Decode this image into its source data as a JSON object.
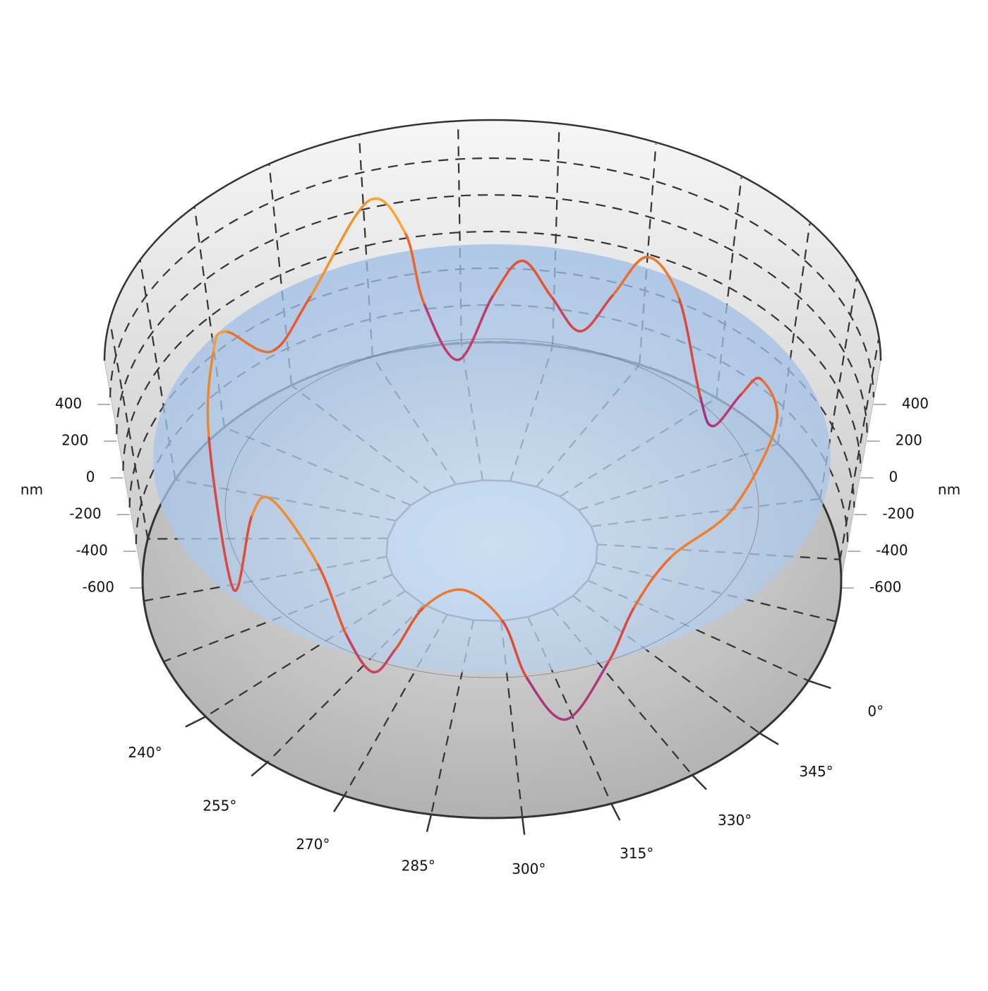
{
  "chart_data": {
    "type": "line",
    "y_label": "nm",
    "x": [
      25,
      44,
      54,
      64,
      68,
      74,
      82,
      90,
      97,
      103,
      109,
      115,
      122,
      129,
      133,
      141,
      155,
      166,
      185,
      195,
      205,
      229,
      237,
      244,
      257,
      264,
      270,
      275,
      281,
      289,
      297,
      302,
      310,
      319,
      325,
      334,
      353
    ],
    "values": [
      182,
      109,
      -120,
      -415,
      -309,
      131,
      262,
      0,
      -225,
      -73,
      98,
      -91,
      -411,
      -98,
      284,
      494,
      124,
      -29,
      338,
      385,
      109,
      -295,
      200,
      371,
      185,
      -113,
      -258,
      -109,
      135,
      247,
      91,
      -211,
      -447,
      -204,
      40,
      215,
      236
    ],
    "colorscale": [
      "#5a2d8c",
      "#b63779",
      "#e8502a",
      "#f3902a",
      "#fcd63c"
    ],
    "ylim": [
      -600,
      600
    ],
    "yticks": [
      -600,
      -400,
      -200,
      0,
      200,
      400
    ],
    "xticks": [
      {
        "value": 0,
        "label": "0°"
      },
      {
        "value": 15,
        "label": null
      },
      {
        "value": 30,
        "label": null
      },
      {
        "value": 45,
        "label": null
      },
      {
        "value": 60,
        "label": null
      },
      {
        "value": 75,
        "label": null
      },
      {
        "value": 90,
        "label": null
      },
      {
        "value": 105,
        "label": null
      },
      {
        "value": 120,
        "label": null
      },
      {
        "value": 135,
        "label": null
      },
      {
        "value": 150,
        "label": null
      },
      {
        "value": 165,
        "label": null
      },
      {
        "value": 180,
        "label": null
      },
      {
        "value": 195,
        "label": null
      },
      {
        "value": 210,
        "label": null
      },
      {
        "value": 225,
        "label": null
      },
      {
        "value": 240,
        "label": "240°"
      },
      {
        "value": 255,
        "label": "255°"
      },
      {
        "value": 270,
        "label": "270°"
      },
      {
        "value": 285,
        "label": "285°"
      },
      {
        "value": 300,
        "label": "300°"
      },
      {
        "value": 315,
        "label": "315°"
      },
      {
        "value": 330,
        "label": "330°"
      },
      {
        "value": 345,
        "label": "345°"
      }
    ]
  }
}
